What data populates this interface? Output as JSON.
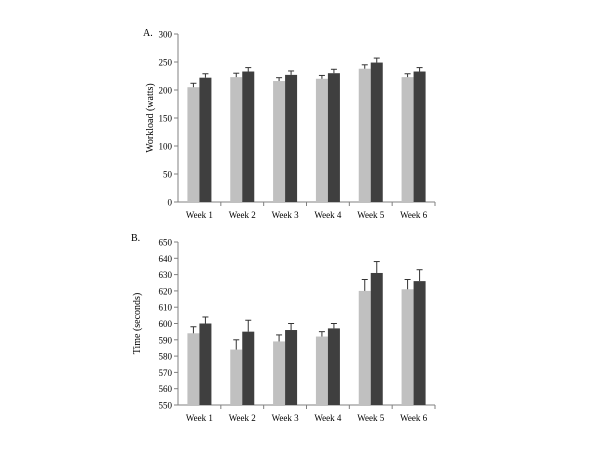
{
  "colors": {
    "series_a": "#c0c0c0",
    "series_b": "#3f3f3f",
    "axis": "#808080",
    "error": "#333333"
  },
  "chart_data": [
    {
      "panel_label": "A.",
      "type": "bar",
      "categories": [
        "Week 1",
        "Week 2",
        "Week 3",
        "Week 4",
        "Week 5",
        "Week 6"
      ],
      "ylabel": "Workload (watts)",
      "xlabel": "",
      "ylim": [
        0,
        300
      ],
      "yticks": [
        0,
        50,
        100,
        150,
        200,
        250,
        300
      ],
      "grid": false,
      "series": [
        {
          "values": [
            205,
            223,
            216,
            220,
            238,
            223
          ],
          "errors": [
            7,
            7,
            6,
            6,
            7,
            6
          ]
        },
        {
          "values": [
            222,
            233,
            227,
            230,
            249,
            233
          ],
          "errors": [
            7,
            7,
            7,
            7,
            8,
            7
          ]
        }
      ]
    },
    {
      "panel_label": "B.",
      "type": "bar",
      "categories": [
        "Week 1",
        "Week 2",
        "Week 3",
        "Week 4",
        "Week 5",
        "Week 6"
      ],
      "ylabel": "Time (seconds)",
      "xlabel": "",
      "ylim": [
        550,
        650
      ],
      "yticks": [
        550,
        560,
        570,
        580,
        590,
        600,
        610,
        620,
        630,
        640,
        650
      ],
      "grid": false,
      "series": [
        {
          "values": [
            594,
            584,
            589,
            592,
            620,
            621
          ],
          "errors": [
            4,
            6,
            4,
            3,
            7,
            6
          ]
        },
        {
          "values": [
            600,
            595,
            596,
            597,
            631,
            626
          ],
          "errors": [
            4,
            7,
            4,
            3,
            7,
            7
          ]
        }
      ]
    }
  ]
}
